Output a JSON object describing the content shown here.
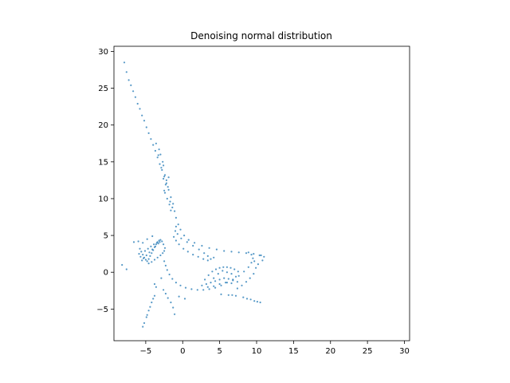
{
  "chart_data": {
    "type": "scatter",
    "title": "Denoising normal distribution",
    "xlabel": "",
    "ylabel": "",
    "xlim": [
      -9.3,
      30.7
    ],
    "ylim": [
      -9.3,
      30.7
    ],
    "xticks": [
      -5,
      0,
      5,
      10,
      15,
      20,
      25,
      30
    ],
    "yticks": [
      -5,
      0,
      5,
      10,
      15,
      20,
      25,
      30
    ],
    "grid": false,
    "marker_color": "#1f77b4",
    "series": [
      {
        "description_points": "approximate sample of plotted points (dense clusters)",
        "points": [
          [
            -7.9,
            28.5
          ],
          [
            -7.6,
            27.2
          ],
          [
            -7.3,
            26.1
          ],
          [
            -7.0,
            25.4
          ],
          [
            -6.7,
            24.6
          ],
          [
            -6.4,
            23.8
          ],
          [
            -6.1,
            22.9
          ],
          [
            -5.8,
            22.2
          ],
          [
            -5.5,
            21.3
          ],
          [
            -5.2,
            20.6
          ],
          [
            -4.9,
            19.7
          ],
          [
            -4.6,
            18.9
          ],
          [
            -4.3,
            18.1
          ],
          [
            -4.0,
            17.3
          ],
          [
            -3.7,
            16.5
          ],
          [
            -3.4,
            15.6
          ],
          [
            -3.1,
            14.7
          ],
          [
            -2.8,
            13.9
          ],
          [
            -2.5,
            13.0
          ],
          [
            -2.2,
            12.1
          ],
          [
            -1.9,
            11.2
          ],
          [
            -1.6,
            10.2
          ],
          [
            -1.3,
            9.3
          ],
          [
            -1.1,
            8.3
          ],
          [
            -0.9,
            7.4
          ],
          [
            -0.6,
            6.5
          ],
          [
            -0.3,
            5.8
          ],
          [
            0.2,
            5.0
          ],
          [
            0.8,
            4.4
          ],
          [
            1.6,
            4.0
          ],
          [
            2.6,
            3.6
          ],
          [
            3.6,
            3.3
          ],
          [
            4.6,
            3.1
          ],
          [
            5.6,
            2.9
          ],
          [
            6.6,
            2.8
          ],
          [
            7.6,
            2.7
          ],
          [
            8.6,
            2.6
          ],
          [
            9.6,
            2.5
          ],
          [
            10.4,
            2.3
          ],
          [
            10.8,
            1.6
          ],
          [
            -2.6,
            14.5
          ],
          [
            -2.4,
            13.2
          ],
          [
            -2.2,
            12.5
          ],
          [
            -2.0,
            11.6
          ],
          [
            -2.4,
            10.8
          ],
          [
            -2.1,
            10.0
          ],
          [
            -1.8,
            9.2
          ],
          [
            -1.6,
            8.4
          ],
          [
            -1.9,
            12.9
          ],
          [
            -2.7,
            15.0
          ],
          [
            -3.0,
            16.0
          ],
          [
            -3.2,
            16.7
          ],
          [
            -3.6,
            17.5
          ],
          [
            -2.9,
            14.2
          ],
          [
            -2.3,
            11.9
          ],
          [
            -1.7,
            9.6
          ],
          [
            -1.4,
            8.8
          ],
          [
            -2.5,
            11.1
          ],
          [
            -3.3,
            15.9
          ],
          [
            -2.6,
            12.7
          ],
          [
            -5.8,
            3.2
          ],
          [
            -5.6,
            2.8
          ],
          [
            -5.4,
            2.4
          ],
          [
            -5.2,
            2.0
          ],
          [
            -5.0,
            1.7
          ],
          [
            -4.8,
            1.5
          ],
          [
            -4.6,
            1.8
          ],
          [
            -4.4,
            2.2
          ],
          [
            -4.2,
            2.6
          ],
          [
            -4.0,
            3.0
          ],
          [
            -3.8,
            3.4
          ],
          [
            -3.6,
            3.8
          ],
          [
            -3.4,
            4.1
          ],
          [
            -3.2,
            4.3
          ],
          [
            -3.0,
            4.4
          ],
          [
            -2.8,
            4.2
          ],
          [
            -2.6,
            3.8
          ],
          [
            -2.4,
            3.3
          ],
          [
            -5.5,
            1.6
          ],
          [
            -5.3,
            1.9
          ],
          [
            -4.9,
            2.3
          ],
          [
            -4.5,
            2.7
          ],
          [
            -4.1,
            3.1
          ],
          [
            -3.7,
            3.5
          ],
          [
            -3.3,
            3.9
          ],
          [
            -5.7,
            2.1
          ],
          [
            -5.1,
            2.9
          ],
          [
            -4.7,
            3.2
          ],
          [
            -4.3,
            3.5
          ],
          [
            -3.9,
            3.8
          ],
          [
            -3.5,
            4.0
          ],
          [
            -3.1,
            4.1
          ],
          [
            -4.6,
            1.2
          ],
          [
            -4.2,
            1.4
          ],
          [
            -3.8,
            1.7
          ],
          [
            -3.4,
            2.0
          ],
          [
            -3.0,
            2.3
          ],
          [
            -2.7,
            2.6
          ],
          [
            -2.5,
            2.9
          ],
          [
            -5.9,
            2.5
          ],
          [
            -2.5,
            1.5
          ],
          [
            -2.3,
            0.9
          ],
          [
            -2.1,
            0.3
          ],
          [
            -1.8,
            -0.3
          ],
          [
            -1.4,
            -0.9
          ],
          [
            -0.9,
            -1.4
          ],
          [
            -0.3,
            -1.8
          ],
          [
            0.4,
            -2.1
          ],
          [
            1.2,
            -2.3
          ],
          [
            2.0,
            -2.4
          ],
          [
            2.8,
            -2.4
          ],
          [
            3.6,
            -2.3
          ],
          [
            4.4,
            -2.1
          ],
          [
            5.2,
            -1.8
          ],
          [
            6.0,
            -1.4
          ],
          [
            6.8,
            -1.0
          ],
          [
            7.6,
            -0.5
          ],
          [
            8.3,
            0.1
          ],
          [
            8.9,
            0.7
          ],
          [
            9.3,
            1.3
          ],
          [
            9.5,
            1.9
          ],
          [
            9.3,
            2.4
          ],
          [
            8.9,
            2.7
          ],
          [
            9.7,
            1.5
          ],
          [
            9.9,
            0.6
          ],
          [
            9.6,
            -0.2
          ],
          [
            9.1,
            -0.8
          ],
          [
            8.6,
            -1.3
          ],
          [
            8.0,
            -1.8
          ],
          [
            7.4,
            -2.2
          ],
          [
            3.0,
            -1.0
          ],
          [
            3.5,
            -0.4
          ],
          [
            4.0,
            0.1
          ],
          [
            4.5,
            0.4
          ],
          [
            5.0,
            0.6
          ],
          [
            5.5,
            0.7
          ],
          [
            6.0,
            0.7
          ],
          [
            6.5,
            0.6
          ],
          [
            7.0,
            0.4
          ],
          [
            7.5,
            0.1
          ],
          [
            4.2,
            -0.8
          ],
          [
            4.8,
            -0.2
          ],
          [
            5.4,
            0.2
          ],
          [
            6.0,
            0.0
          ],
          [
            6.6,
            -0.2
          ],
          [
            7.2,
            -0.6
          ],
          [
            3.2,
            -1.6
          ],
          [
            3.8,
            -1.4
          ],
          [
            4.4,
            -1.2
          ],
          [
            5.0,
            -1.0
          ],
          [
            5.6,
            -0.8
          ],
          [
            6.2,
            -0.9
          ],
          [
            6.8,
            -1.1
          ],
          [
            7.4,
            -1.3
          ],
          [
            2.6,
            -1.8
          ],
          [
            3.4,
            -2.0
          ],
          [
            4.2,
            -1.9
          ],
          [
            5.0,
            -1.6
          ],
          [
            5.8,
            -1.4
          ],
          [
            6.6,
            -1.5
          ],
          [
            -1.2,
            4.8
          ],
          [
            -1.0,
            5.6
          ],
          [
            -0.9,
            6.2
          ],
          [
            -0.7,
            5.2
          ],
          [
            -0.2,
            4.6
          ],
          [
            0.6,
            4.1
          ],
          [
            1.4,
            3.6
          ],
          [
            2.2,
            3.1
          ],
          [
            2.9,
            2.6
          ],
          [
            3.4,
            2.2
          ],
          [
            3.8,
            1.8
          ],
          [
            3.4,
            1.6
          ],
          [
            2.8,
            1.8
          ],
          [
            2.1,
            2.1
          ],
          [
            1.4,
            2.4
          ],
          [
            0.7,
            2.8
          ],
          [
            0.1,
            3.2
          ],
          [
            -0.5,
            3.8
          ],
          [
            -0.9,
            4.3
          ],
          [
            4.2,
            2.0
          ],
          [
            -2.6,
            -2.4
          ],
          [
            -2.3,
            -2.9
          ],
          [
            -2.0,
            -3.5
          ],
          [
            -1.6,
            -4.1
          ],
          [
            -1.3,
            -4.8
          ],
          [
            -1.1,
            -5.7
          ],
          [
            -3.8,
            -3.2
          ],
          [
            -4.2,
            -4.1
          ],
          [
            -4.6,
            -5.2
          ],
          [
            -4.9,
            -6.1
          ],
          [
            -5.2,
            -6.9
          ],
          [
            -5.4,
            -7.4
          ],
          [
            -4.0,
            -3.6
          ],
          [
            -4.4,
            -4.7
          ],
          [
            -4.8,
            -5.8
          ],
          [
            5.2,
            -3.0
          ],
          [
            6.2,
            -3.1
          ],
          [
            7.2,
            -3.2
          ],
          [
            8.2,
            -3.4
          ],
          [
            9.2,
            -3.7
          ],
          [
            10.1,
            -4.0
          ],
          [
            10.5,
            -4.1
          ],
          [
            8.7,
            -3.6
          ],
          [
            9.7,
            -3.9
          ],
          [
            6.7,
            -3.1
          ],
          [
            -5.4,
            4.0
          ],
          [
            -4.8,
            4.5
          ],
          [
            -4.1,
            4.9
          ],
          [
            -6.6,
            4.1
          ],
          [
            -6.0,
            4.2
          ],
          [
            -8.2,
            1.0
          ],
          [
            -7.6,
            0.4
          ],
          [
            -3.8,
            -1.6
          ],
          [
            -3.6,
            -2.0
          ],
          [
            -0.5,
            -3.3
          ],
          [
            0.3,
            -3.6
          ],
          [
            -2.9,
            -0.8
          ],
          [
            10.6,
            2.3
          ],
          [
            11.0,
            2.1
          ],
          [
            10.2,
            1.1
          ]
        ]
      }
    ]
  }
}
